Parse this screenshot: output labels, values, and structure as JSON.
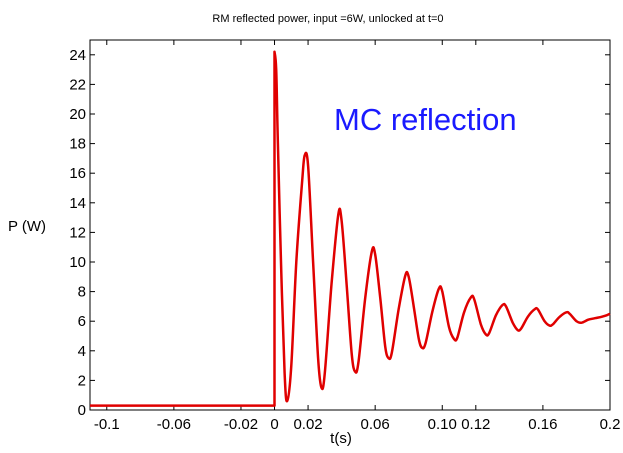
{
  "chart_data": {
    "type": "line",
    "title": "RM reflected power, input =6W, unlocked at t=0",
    "xlabel": "t(s)",
    "ylabel": "P (W)",
    "xlim": [
      -0.11,
      0.2
    ],
    "ylim": [
      0,
      25
    ],
    "x_ticks": [
      -0.1,
      -0.06,
      -0.02,
      0,
      0.02,
      0.06,
      0.1,
      0.12,
      0.16,
      0.2
    ],
    "x_tick_labels": [
      "-0.1",
      "-0.06",
      "-0.02",
      "0",
      "0.02",
      "0.06",
      "0.10",
      "0.12",
      "0.16",
      "0.2"
    ],
    "y_ticks": [
      0,
      2,
      4,
      6,
      8,
      10,
      12,
      14,
      16,
      18,
      20,
      22,
      24
    ],
    "y_tick_labels": [
      "0",
      "2",
      "4",
      "6",
      "8",
      "10",
      "12",
      "14",
      "16",
      "18",
      "20",
      "22",
      "24"
    ],
    "annotation": "MC  reflection",
    "grid": false,
    "series": [
      {
        "color": "#e00000",
        "description": "constant ~0.3 W for t<0, jumps to ~24 W at t=0, then damped oscillation (period ~0.02 s) settling toward ~6 W",
        "points": [
          [
            -0.11,
            0.3
          ],
          [
            0.0,
            0.3
          ],
          [
            0.0,
            24.2
          ],
          [
            0.001,
            23.0
          ],
          [
            0.002,
            18.0
          ],
          [
            0.004,
            9.5
          ],
          [
            0.006,
            2.5
          ],
          [
            0.0075,
            0.6
          ],
          [
            0.01,
            3.0
          ],
          [
            0.013,
            10.0
          ],
          [
            0.0165,
            15.5
          ],
          [
            0.018,
            17.2
          ],
          [
            0.02,
            16.5
          ],
          [
            0.023,
            10.0
          ],
          [
            0.026,
            3.5
          ],
          [
            0.028,
            1.5
          ],
          [
            0.03,
            2.5
          ],
          [
            0.034,
            8.5
          ],
          [
            0.038,
            13.2
          ],
          [
            0.04,
            12.8
          ],
          [
            0.043,
            8.5
          ],
          [
            0.046,
            3.8
          ],
          [
            0.048,
            2.6
          ],
          [
            0.05,
            3.2
          ],
          [
            0.054,
            7.5
          ],
          [
            0.058,
            10.7
          ],
          [
            0.06,
            10.5
          ],
          [
            0.063,
            7.6
          ],
          [
            0.066,
            4.3
          ],
          [
            0.068,
            3.5
          ],
          [
            0.07,
            3.9
          ],
          [
            0.074,
            6.8
          ],
          [
            0.078,
            9.1
          ],
          [
            0.08,
            9.0
          ],
          [
            0.083,
            7.0
          ],
          [
            0.086,
            4.8
          ],
          [
            0.088,
            4.2
          ],
          [
            0.09,
            4.5
          ],
          [
            0.094,
            6.6
          ],
          [
            0.098,
            8.2
          ],
          [
            0.1,
            8.0
          ],
          [
            0.104,
            5.6
          ],
          [
            0.107,
            4.8
          ],
          [
            0.109,
            4.9
          ],
          [
            0.113,
            6.6
          ],
          [
            0.117,
            7.6
          ],
          [
            0.119,
            7.5
          ],
          [
            0.123,
            5.8
          ],
          [
            0.126,
            5.1
          ],
          [
            0.128,
            5.2
          ],
          [
            0.132,
            6.4
          ],
          [
            0.136,
            7.1
          ],
          [
            0.138,
            7.0
          ],
          [
            0.142,
            5.9
          ],
          [
            0.145,
            5.4
          ],
          [
            0.147,
            5.5
          ],
          [
            0.151,
            6.3
          ],
          [
            0.155,
            6.8
          ],
          [
            0.157,
            6.8
          ],
          [
            0.161,
            6.0
          ],
          [
            0.164,
            5.7
          ],
          [
            0.166,
            5.8
          ],
          [
            0.17,
            6.3
          ],
          [
            0.174,
            6.6
          ],
          [
            0.176,
            6.5
          ],
          [
            0.18,
            6.0
          ],
          [
            0.183,
            5.9
          ],
          [
            0.187,
            6.1
          ],
          [
            0.191,
            6.2
          ],
          [
            0.195,
            6.3
          ],
          [
            0.198,
            6.4
          ],
          [
            0.2,
            6.5
          ]
        ]
      }
    ]
  }
}
